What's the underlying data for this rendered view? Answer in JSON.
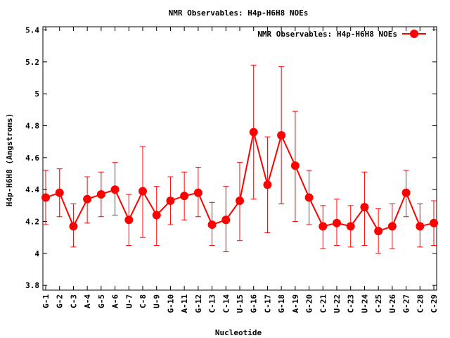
{
  "chart_data": {
    "type": "line",
    "title": "NMR Observables: H4p-H6H8 NOEs",
    "xlabel": "Nucleotide",
    "ylabel": "H4p-H6H8 (Angstroms)",
    "ylim": [
      3.77,
      5.42
    ],
    "yticks": [
      "3.8",
      "4",
      "4.2",
      "4.4",
      "4.6",
      "4.8",
      "5",
      "5.2",
      "5.4"
    ],
    "grid": false,
    "legend_position": "top-right",
    "categories": [
      "G-1",
      "G-2",
      "C-3",
      "A-4",
      "G-5",
      "A-6",
      "U-7",
      "C-8",
      "U-9",
      "G-10",
      "A-11",
      "G-12",
      "C-13",
      "C-14",
      "U-15",
      "G-16",
      "C-17",
      "G-18",
      "A-19",
      "G-20",
      "C-21",
      "U-22",
      "C-23",
      "U-24",
      "C-25",
      "U-26",
      "G-27",
      "C-28",
      "C-29"
    ],
    "series": [
      {
        "name": "NMR Observables: H4p-H6H8 NOEs",
        "color": "#ff0000",
        "values": [
          4.35,
          4.38,
          4.17,
          4.34,
          4.37,
          4.4,
          4.21,
          4.39,
          4.24,
          4.33,
          4.36,
          4.38,
          4.18,
          4.21,
          4.33,
          4.76,
          4.43,
          4.74,
          4.55,
          4.35,
          4.17,
          4.19,
          4.17,
          4.29,
          4.14,
          4.17,
          4.38,
          4.17,
          4.19
        ],
        "err_low": [
          4.18,
          4.23,
          4.04,
          4.19,
          4.23,
          4.24,
          4.05,
          4.1,
          4.05,
          4.18,
          4.21,
          4.23,
          4.05,
          4.01,
          4.08,
          4.34,
          4.13,
          4.31,
          4.2,
          4.18,
          4.03,
          4.05,
          4.04,
          4.05,
          4.0,
          4.03,
          4.23,
          4.04,
          4.05
        ],
        "err_high": [
          4.52,
          4.53,
          4.31,
          4.48,
          4.51,
          4.57,
          4.37,
          4.67,
          4.42,
          4.48,
          4.51,
          4.54,
          4.32,
          4.42,
          4.57,
          5.18,
          4.73,
          5.17,
          4.89,
          4.52,
          4.3,
          4.34,
          4.3,
          4.51,
          4.28,
          4.31,
          4.52,
          4.31,
          4.33
        ]
      }
    ]
  }
}
